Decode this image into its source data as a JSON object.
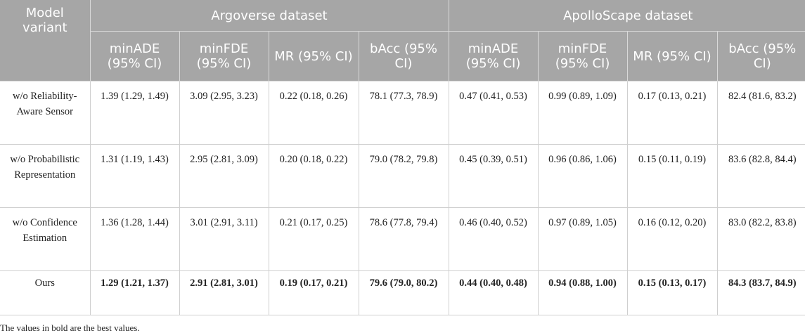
{
  "table": {
    "header_model": "Model variant",
    "groups": [
      "Argoverse dataset",
      "ApolloScape dataset"
    ],
    "metrics": [
      "minADE (95% CI)",
      "minFDE (95% CI)",
      "MR (95% CI)",
      "bAcc (95% CI)"
    ],
    "rows": [
      {
        "model": "w/o Reliability-Aware Sensor",
        "cells": [
          "1.39 (1.29, 1.49)",
          "3.09 (2.95, 3.23)",
          "0.22 (0.18, 0.26)",
          "78.1 (77.3, 78.9)",
          "0.47 (0.41, 0.53)",
          "0.99 (0.89, 1.09)",
          "0.17 (0.13, 0.21)",
          "82.4 (81.6, 83.2)"
        ]
      },
      {
        "model": "w/o Probabilistic Representation",
        "cells": [
          "1.31 (1.19, 1.43)",
          "2.95 (2.81, 3.09)",
          "0.20 (0.18, 0.22)",
          "79.0 (78.2, 79.8)",
          "0.45 (0.39, 0.51)",
          "0.96 (0.86, 1.06)",
          "0.15 (0.11, 0.19)",
          "83.6 (82.8, 84.4)"
        ]
      },
      {
        "model": "w/o Confidence Estimation",
        "cells": [
          "1.36 (1.28, 1.44)",
          "3.01 (2.91, 3.11)",
          "0.21 (0.17, 0.25)",
          "78.6 (77.8, 79.4)",
          "0.46 (0.40, 0.52)",
          "0.97 (0.89, 1.05)",
          "0.16 (0.12, 0.20)",
          "83.0 (82.2, 83.8)"
        ]
      },
      {
        "model": "Ours",
        "cells": [
          "1.29 (1.21, 1.37)",
          "2.91 (2.81, 3.01)",
          "0.19 (0.17, 0.21)",
          "79.6 (79.0, 80.2)",
          "0.44 (0.40, 0.48)",
          "0.94 (0.88, 1.00)",
          "0.15 (0.13, 0.17)",
          "84.3 (83.7, 84.9)"
        ]
      }
    ],
    "footnote": "The values in bold are the best values."
  }
}
